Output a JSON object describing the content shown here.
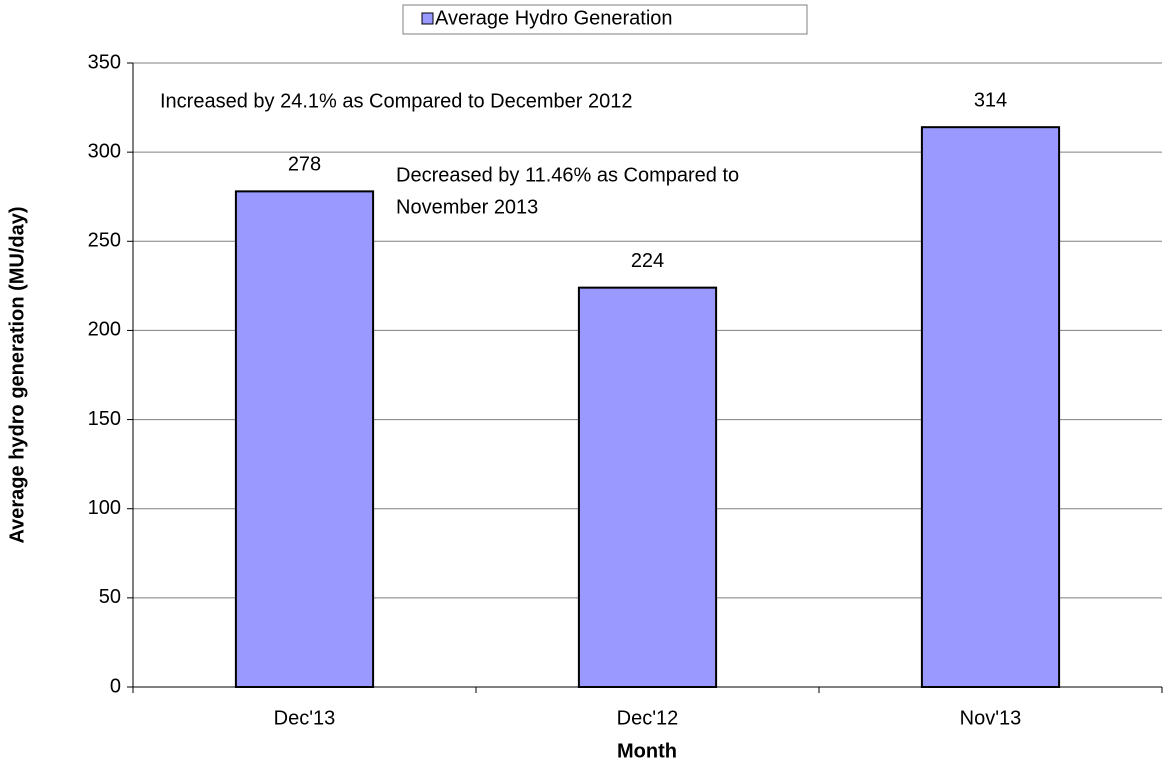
{
  "chart_data": {
    "type": "bar",
    "categories": [
      "Dec'13",
      "Dec'12",
      "Nov'13"
    ],
    "series": [
      {
        "name": "Average Hydro Generation",
        "color": "#9999ff",
        "values": [
          278,
          224,
          314
        ]
      }
    ],
    "x_label": "Month",
    "y_label": "Average hydro generation (MU/day)",
    "ylim": [
      0,
      350
    ],
    "yticks": [
      0,
      50,
      100,
      150,
      200,
      250,
      300,
      350
    ],
    "grid": true,
    "legend": "top",
    "annotations": [
      {
        "lines": [
          "Increased by 24.1% as Compared to December 2012"
        ]
      },
      {
        "lines": [
          "Decreased by 11.46% as Compared to",
          "November 2013"
        ]
      }
    ]
  }
}
